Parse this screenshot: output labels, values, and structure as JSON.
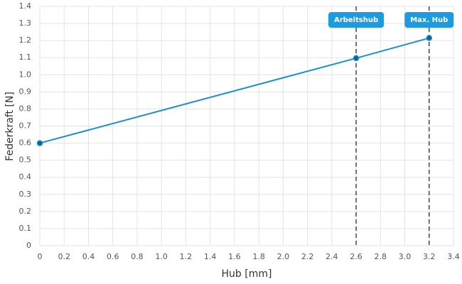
{
  "chart_data": {
    "type": "line",
    "x_label": "Hub [mm]",
    "y_label": "Federkraft [N]",
    "x": [
      0,
      2.6,
      3.2
    ],
    "series": [
      {
        "name": "Federkraft",
        "color": "#1b8fd2",
        "values": [
          0.6,
          1.097,
          1.215
        ]
      }
    ],
    "xlim": [
      0,
      3.4
    ],
    "xticks": [
      0,
      0.2,
      0.4,
      0.6,
      0.8,
      {
        "value": 1,
        "label": "1.0"
      },
      1.2,
      1.4,
      1.6,
      1.8,
      {
        "value": 2,
        "label": "2.0"
      },
      2.2,
      2.4,
      2.6,
      2.8,
      {
        "value": 3,
        "label": "3.0"
      },
      3.2,
      3.4
    ],
    "ylim": [
      0,
      1.4
    ],
    "yticks": [
      0,
      0.1,
      0.2,
      0.3,
      0.4,
      0.5,
      0.6,
      0.7,
      0.8,
      0.9,
      {
        "value": 1,
        "label": "1.0"
      },
      1.1,
      1.2,
      1.3,
      1.4
    ],
    "grid": true,
    "annotations": [
      {
        "x": 2.6,
        "label": "Arbeitshub"
      },
      {
        "x": 3.2,
        "label": "Max. Hub"
      }
    ]
  }
}
